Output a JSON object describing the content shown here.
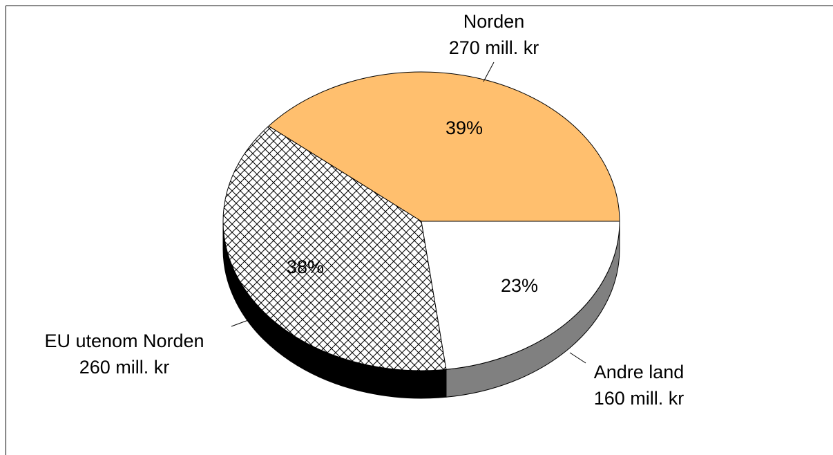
{
  "chart_data": {
    "type": "pie",
    "categories": [
      "Norden",
      "EU utenom Norden",
      "Andre land"
    ],
    "values": [
      39,
      38,
      23
    ],
    "value_labels": [
      "39%",
      "38%",
      "23%"
    ],
    "amounts": [
      {
        "value": 270,
        "label": "270 mill. kr"
      },
      {
        "value": 260,
        "label": "260 mill. kr"
      },
      {
        "value": 160,
        "label": "160 mill. kr"
      }
    ],
    "colors": [
      "#ffbf6e",
      "#ffffff",
      "#ffffff"
    ],
    "patterns": [
      null,
      "crosshatch",
      null
    ],
    "side_colors": [
      "#b08040",
      "#000000",
      "#808080"
    ],
    "start_angle": 0
  }
}
